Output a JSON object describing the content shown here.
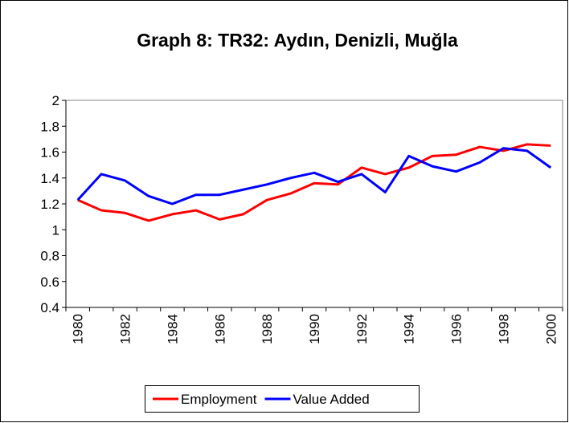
{
  "chart_data": {
    "type": "line",
    "title": "Graph 8: TR32: Aydın, Denizli, Muğla",
    "categories": [
      1980,
      null,
      1982,
      null,
      1984,
      null,
      1986,
      null,
      1988,
      null,
      1990,
      null,
      1992,
      null,
      1994,
      null,
      1996,
      null,
      1998,
      null,
      2000
    ],
    "series": [
      {
        "name": "Employment",
        "color": "#ff0000",
        "values": [
          1.23,
          1.15,
          1.13,
          1.07,
          1.12,
          1.15,
          1.08,
          1.12,
          1.23,
          1.28,
          1.36,
          1.35,
          1.48,
          1.43,
          1.48,
          1.57,
          1.58,
          1.64,
          1.61,
          1.66,
          1.65
        ]
      },
      {
        "name": "Value Added",
        "color": "#0000ff",
        "values": [
          1.23,
          1.43,
          1.38,
          1.26,
          1.2,
          1.27,
          1.27,
          1.31,
          1.35,
          1.4,
          1.44,
          1.37,
          1.43,
          1.29,
          1.57,
          1.49,
          1.45,
          1.52,
          1.63,
          1.61,
          1.48
        ]
      }
    ],
    "ylim": [
      0.4,
      2
    ],
    "yticks": [
      0.4,
      0.6,
      0.8,
      1,
      1.2,
      1.4,
      1.6,
      1.8,
      2
    ],
    "grid": false,
    "legend": "bottom"
  }
}
